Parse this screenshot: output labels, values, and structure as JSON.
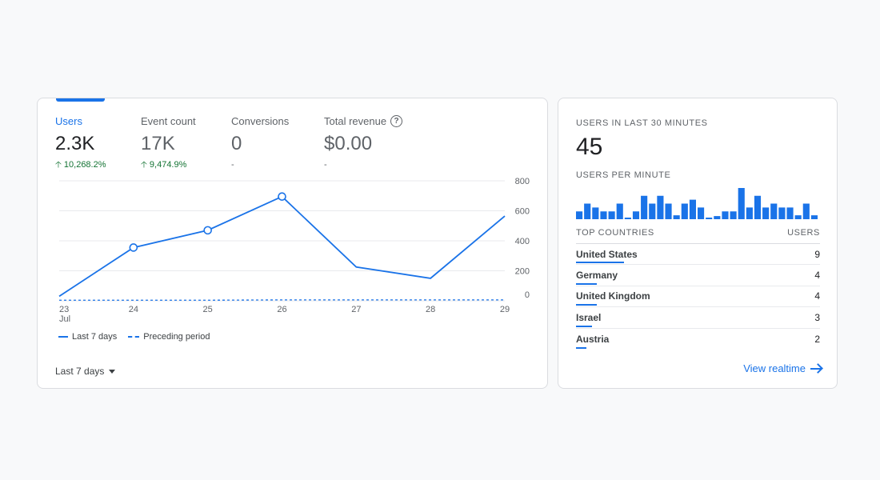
{
  "overview": {
    "metrics": [
      {
        "label": "Users",
        "value": "2.3K",
        "delta": "10,268.2%",
        "trend": "up",
        "active": true
      },
      {
        "label": "Event count",
        "value": "17K",
        "delta": "9,474.9%",
        "trend": "up",
        "active": false
      },
      {
        "label": "Conversions",
        "value": "0",
        "delta": "-",
        "trend": "none",
        "active": false
      },
      {
        "label": "Total revenue",
        "value": "$0.00",
        "delta": "-",
        "trend": "none",
        "active": false,
        "help_icon": "help-circle-icon"
      }
    ],
    "legend": {
      "current": "Last 7 days",
      "previous": "Preceding period"
    },
    "date_range": "Last 7 days"
  },
  "chart_data": {
    "type": "line",
    "x": [
      "23",
      "24",
      "25",
      "26",
      "27",
      "28",
      "29"
    ],
    "x_sublabel": "Jul",
    "series": [
      {
        "name": "Last 7 days",
        "values": [
          30,
          355,
          470,
          695,
          225,
          150,
          565
        ],
        "style": "solid",
        "markers": [
          false,
          true,
          true,
          true,
          false,
          false,
          false
        ]
      },
      {
        "name": "Preceding period",
        "values": [
          4,
          4,
          4,
          6,
          6,
          6,
          6
        ],
        "style": "dashed"
      }
    ],
    "y_ticks": [
      800,
      600,
      400,
      200,
      0
    ],
    "ylim": [
      0,
      800
    ],
    "grid": true,
    "color": "#1a73e8"
  },
  "realtime": {
    "heading": "USERS IN LAST 30 MINUTES",
    "count": "45",
    "per_minute_label": "USERS PER MINUTE",
    "per_minute": [
      1,
      2,
      1.5,
      1,
      1,
      2,
      0.2,
      1,
      3,
      2,
      3,
      2,
      0.5,
      2,
      2.5,
      1.5,
      0.1,
      0.4,
      1,
      1,
      4,
      1.5,
      3,
      1.5,
      2,
      1.5,
      1.5,
      0.5,
      2,
      0.5
    ],
    "countries_header": {
      "left": "TOP COUNTRIES",
      "right": "USERS"
    },
    "countries": [
      {
        "name": "United States",
        "users": "9",
        "share": 1.0
      },
      {
        "name": "Germany",
        "users": "4",
        "share": 0.44
      },
      {
        "name": "United Kingdom",
        "users": "4",
        "share": 0.44
      },
      {
        "name": "Israel",
        "users": "3",
        "share": 0.33
      },
      {
        "name": "Austria",
        "users": "2",
        "share": 0.22
      }
    ],
    "view_link": "View realtime"
  }
}
